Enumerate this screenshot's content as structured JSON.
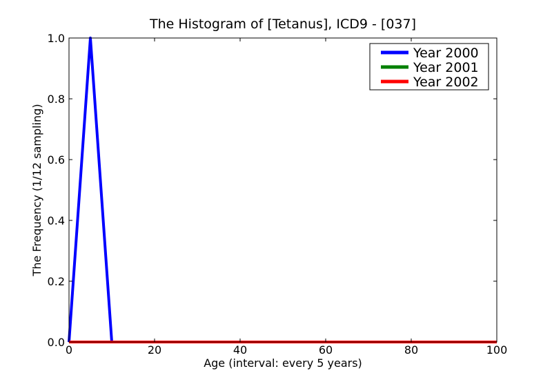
{
  "chart_data": {
    "type": "line",
    "title": "The Histogram of [Tetanus], ICD9 - [037]",
    "xlabel": "Age (interval: every 5 years)",
    "ylabel": "The Frequency (1/12 sampling)",
    "xlim": [
      0,
      100
    ],
    "ylim": [
      0,
      1.0
    ],
    "xticks": [
      "0",
      "20",
      "40",
      "60",
      "80",
      "100"
    ],
    "yticks": [
      "0.0",
      "0.2",
      "0.4",
      "0.6",
      "0.8",
      "1.0"
    ],
    "grid": false,
    "legend_position": "top-right",
    "series": [
      {
        "name": "Year 2000",
        "color": "#0000ff",
        "x": [
          0,
          5,
          10,
          15,
          20,
          25,
          30,
          35,
          40,
          45,
          50,
          55,
          60,
          65,
          70,
          75,
          80,
          85,
          90,
          95,
          100
        ],
        "y": [
          0,
          1.0,
          0,
          0,
          0,
          0,
          0,
          0,
          0,
          0,
          0,
          0,
          0,
          0,
          0,
          0,
          0,
          0,
          0,
          0,
          0
        ]
      },
      {
        "name": "Year 2001",
        "color": "#008000",
        "x": [
          0,
          5,
          10,
          15,
          20,
          25,
          30,
          35,
          40,
          45,
          50,
          55,
          60,
          65,
          70,
          75,
          80,
          85,
          90,
          95,
          100
        ],
        "y": [
          0,
          0,
          0,
          0,
          0,
          0,
          0,
          0,
          0,
          0,
          0,
          0,
          0,
          0,
          0,
          0,
          0,
          0,
          0,
          0,
          0
        ]
      },
      {
        "name": "Year 2002",
        "color": "#ff0000",
        "x": [
          0,
          5,
          10,
          15,
          20,
          25,
          30,
          35,
          40,
          45,
          50,
          55,
          60,
          65,
          70,
          75,
          80,
          85,
          90,
          95,
          100
        ],
        "y": [
          0,
          0,
          0,
          0,
          0,
          0,
          0,
          0,
          0,
          0,
          0,
          0,
          0,
          0,
          0,
          0,
          0,
          0,
          0,
          0,
          0
        ]
      }
    ]
  }
}
